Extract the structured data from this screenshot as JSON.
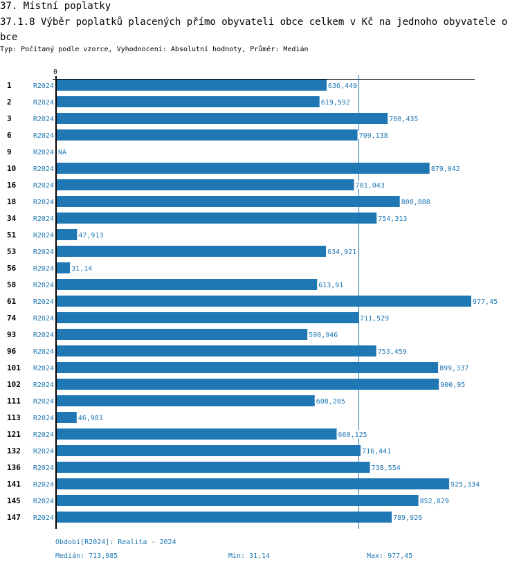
{
  "header": {
    "section_title": "37. Místní poplatky",
    "indicator_title": "37.1.8 Výběr poplatků placených přímo obyvateli obce celkem  v Kč na jednoho obyvatele obce",
    "subtitle": "Typ: Počítaný podle vzorce, Vyhodnocení: Absolutní hodnoty, Průměr: Medián"
  },
  "colors": {
    "bar": "#1f77b4",
    "label": "#1f77b4",
    "axis": "#000000"
  },
  "chart_data": {
    "type": "bar",
    "orientation": "horizontal",
    "title": "37.1.8 Výběr poplatků placených přímo obyvateli obce celkem  v Kč na jednoho obyvatele obce",
    "xlabel": "",
    "ylabel": "",
    "axis_zero_label": "0",
    "xlim": [
      0,
      977.45
    ],
    "grid": false,
    "median": 713.985,
    "categories": [
      "1",
      "2",
      "3",
      "6",
      "9",
      "10",
      "16",
      "18",
      "34",
      "51",
      "53",
      "56",
      "58",
      "61",
      "74",
      "93",
      "96",
      "101",
      "102",
      "111",
      "113",
      "121",
      "132",
      "136",
      "141",
      "145",
      "147"
    ],
    "period_label": "R2024",
    "series": [
      {
        "name": "R2024",
        "values": [
          636.449,
          619.592,
          780.435,
          709.138,
          null,
          879.042,
          701.043,
          808.888,
          754.313,
          47.913,
          634.921,
          31.14,
          613.91,
          977.45,
          711.529,
          590.946,
          753.459,
          899.337,
          900.95,
          608.205,
          46.981,
          660.125,
          716.441,
          738.554,
          925.334,
          852.829,
          789.926
        ],
        "labels": [
          "636,449",
          "619,592",
          "780,435",
          "709,138",
          "NA",
          "879,042",
          "701,043",
          "808,888",
          "754,313",
          "47,913",
          "634,921",
          "31,14",
          "613,91",
          "977,45",
          "711,529",
          "590,946",
          "753,459",
          "899,337",
          "900,95",
          "608,205",
          "46,981",
          "660,125",
          "716,441",
          "738,554",
          "925,334",
          "852,829",
          "789,926"
        ]
      }
    ]
  },
  "footer": {
    "period_legend": "Období[R2024]: Realita - 2024",
    "median": "Medián: 713,985",
    "min": "Min: 31,14",
    "max": "Max: 977,45"
  }
}
